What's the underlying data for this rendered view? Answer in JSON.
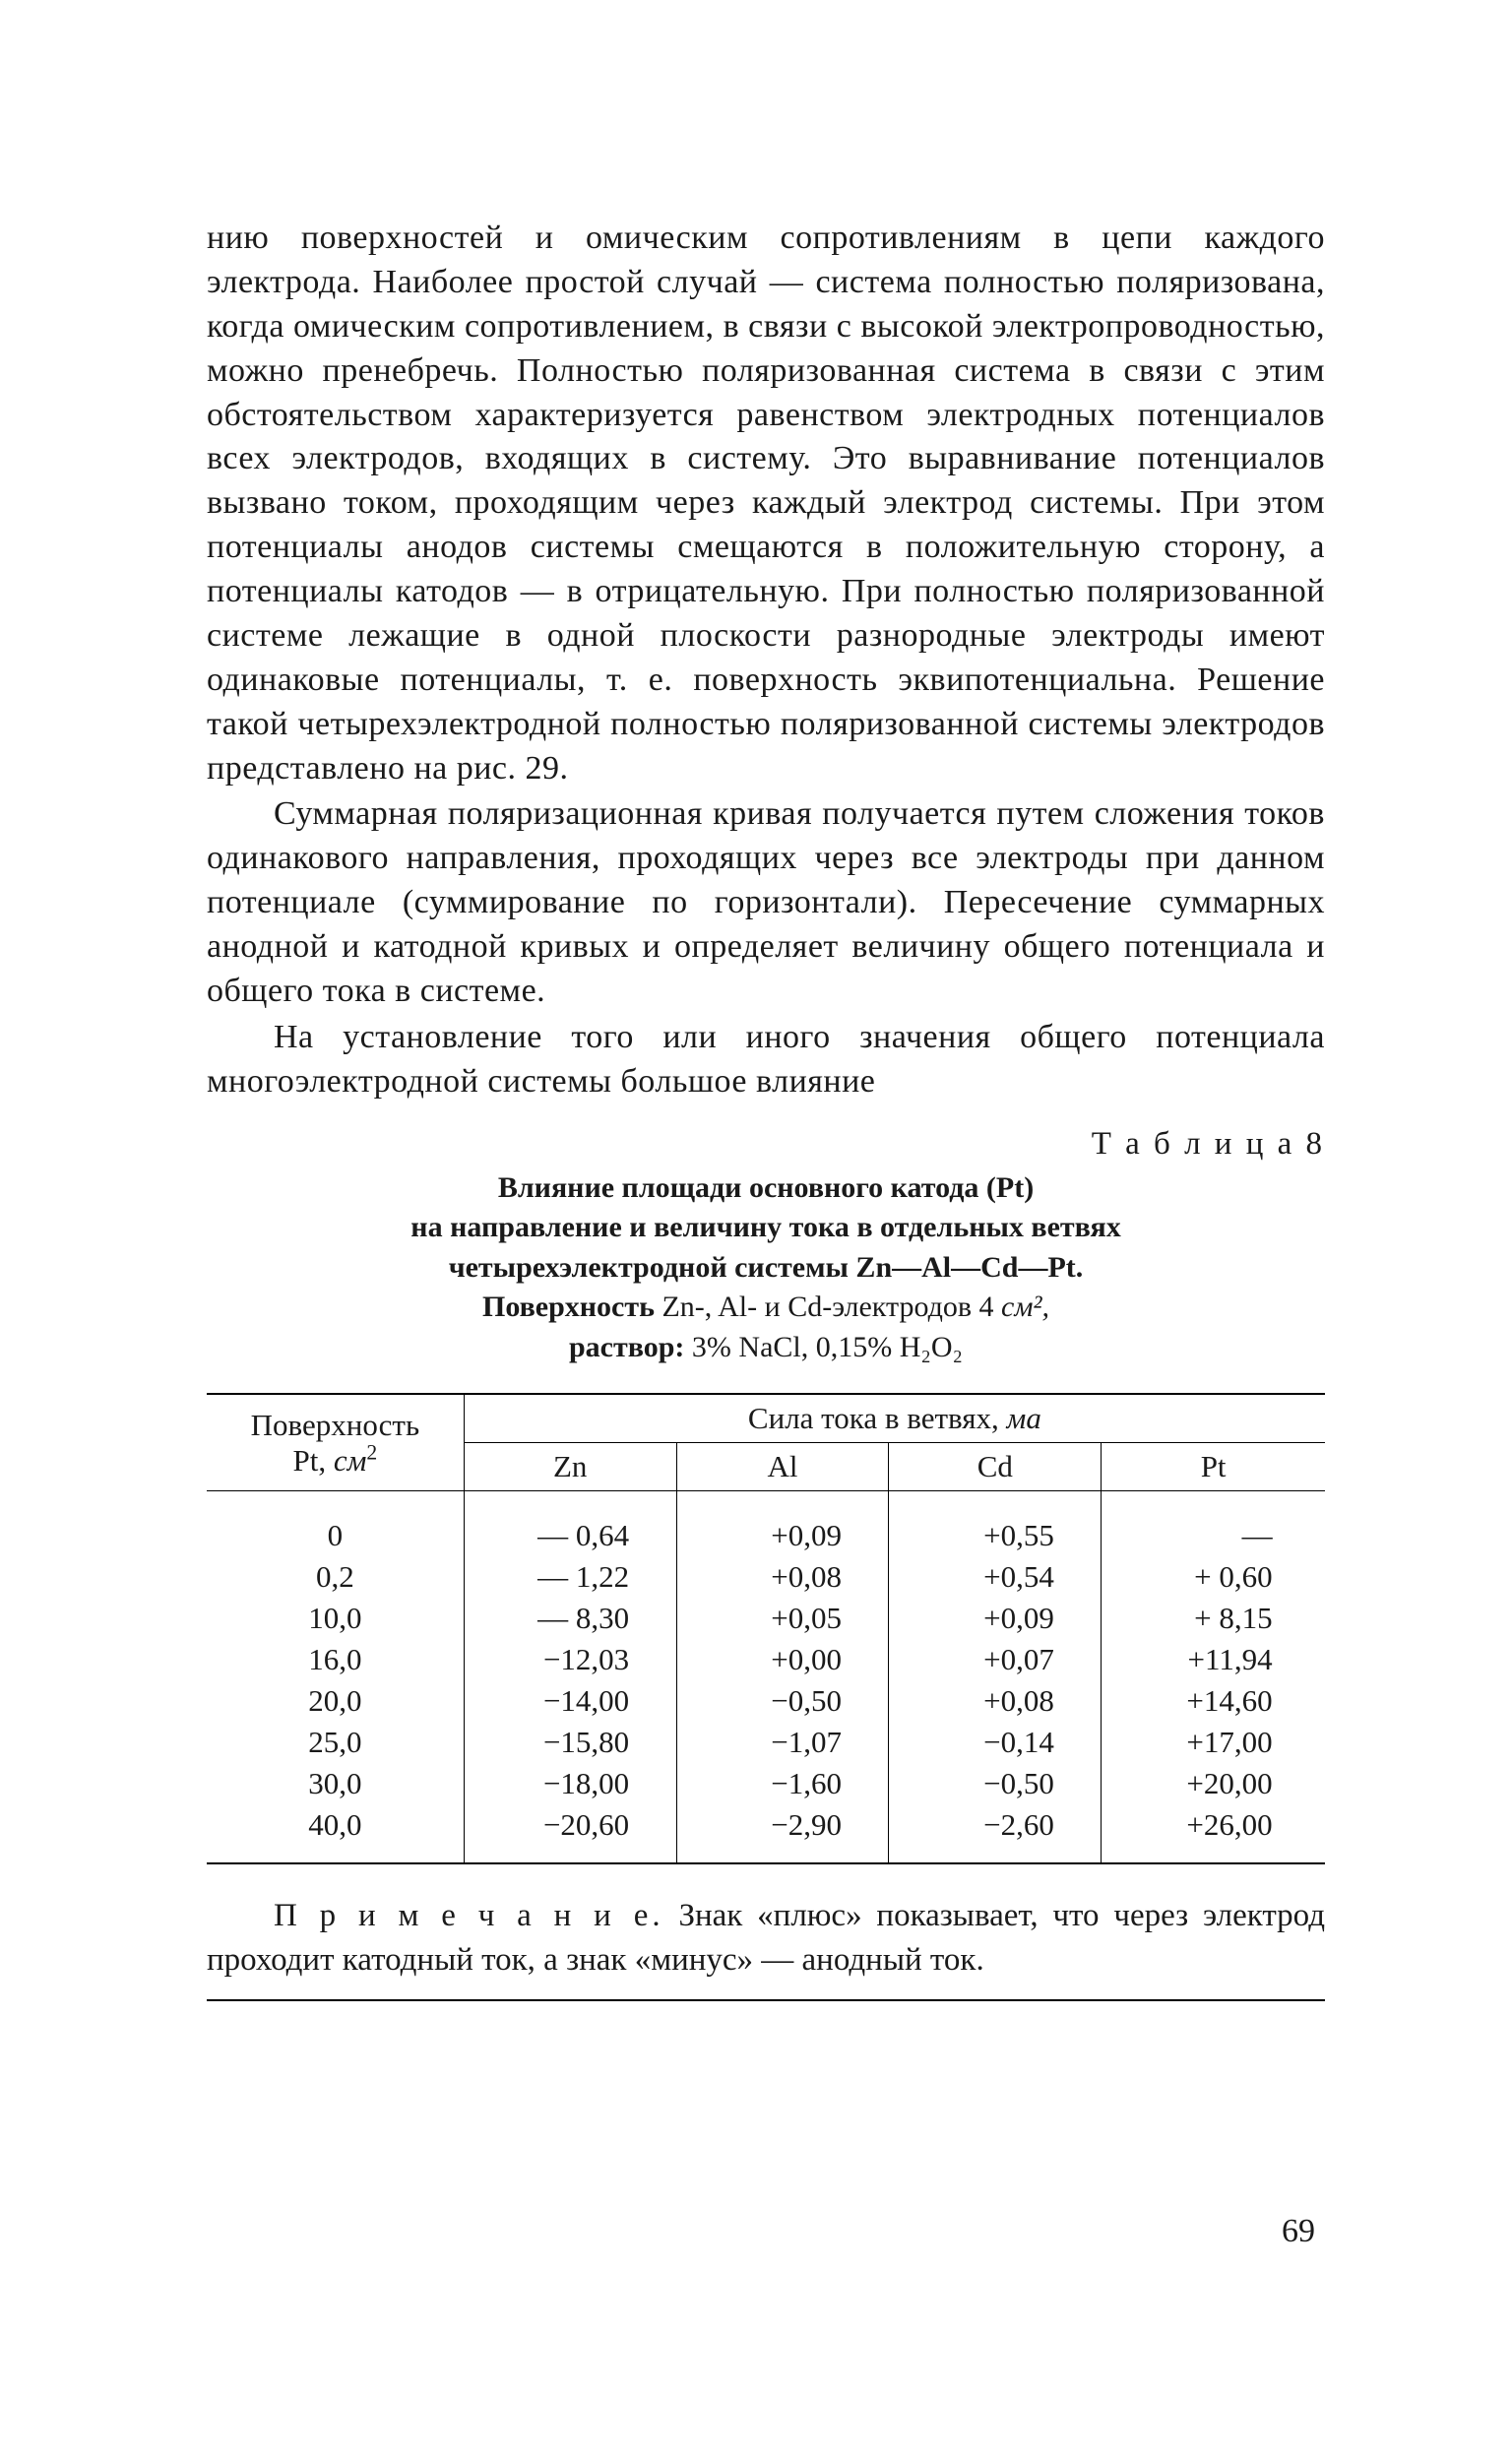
{
  "paragraphs": [
    "нию поверхностей и омическим сопротивлениям в цепи каждого электрода. Наиболее простой случай — система полностью поляризована, когда омическим сопротивлением, в связи с высокой электропроводностью, можно пренебречь. Полностью поляризованная система в связи с этим обстоятельством характеризуется равенством электродных потенциалов всех электродов, входящих в систему. Это выравнивание потенциалов вызвано током, проходящим через каждый электрод системы. При этом потенциалы анодов системы смещаются в положительную сторону, а потенциалы катодов — в отрицательную. При полностью поляризованной системе лежащие в одной плоскости разнородные электроды имеют одинаковые потенциалы, т. е. поверхность эквипотенциальна. Решение такой четырехэлектродной полностью поляризованной системы электродов представлено на рис. 29.",
    "Суммарная поляризационная кривая получается путем сложения токов одинакового направления, проходящих через все электроды при данном потенциале (суммирование по горизонтали). Пересечение суммарных анодной и катодной кривых и определяет величину общего потенциала и общего тока в системе.",
    "На установление того или иного значения общего потенциала многоэлектродной системы большое влияние"
  ],
  "table_label": "Т а б л и ц а  8",
  "caption_lines": {
    "l1": "Влияние площади основного катода (Pt)",
    "l2": "на направление и величину тока в отдельных ветвях",
    "l3": "четырехэлектродной системы Zn—Al—Cd—Pt.",
    "l4_prefix": "Поверхность ",
    "l4_mid": "Zn-, Al- и Cd-электродов 4 ",
    "l4_unit": "см²,",
    "l5_prefix": "раствор: ",
    "l5_rest": "3% NaCl, 0,15% H₂O₂"
  },
  "table": {
    "col_left_l1": "Поверхность",
    "col_left_l2": "Pt, см²",
    "group_header": "Сила тока в ветвях, ма",
    "subheads": [
      "Zn",
      "Al",
      "Cd",
      "Pt"
    ],
    "rows": [
      {
        "pt": "0",
        "zn": "— 0,64",
        "al": "+0,09",
        "cd": "+0,55",
        "ptc": "—"
      },
      {
        "pt": "0,2",
        "zn": "— 1,22",
        "al": "+0,08",
        "cd": "+0,54",
        "ptc": "+ 0,60"
      },
      {
        "pt": "10,0",
        "zn": "— 8,30",
        "al": "+0,05",
        "cd": "+0,09",
        "ptc": "+ 8,15"
      },
      {
        "pt": "16,0",
        "zn": "−12,03",
        "al": "+0,00",
        "cd": "+0,07",
        "ptc": "+11,94"
      },
      {
        "pt": "20,0",
        "zn": "−14,00",
        "al": "−0,50",
        "cd": "+0,08",
        "ptc": "+14,60"
      },
      {
        "pt": "25,0",
        "zn": "−15,80",
        "al": "−1,07",
        "cd": "−0,14",
        "ptc": "+17,00"
      },
      {
        "pt": "30,0",
        "zn": "−18,00",
        "al": "−1,60",
        "cd": "−0,50",
        "ptc": "+20,00"
      },
      {
        "pt": "40,0",
        "zn": "−20,60",
        "al": "−2,90",
        "cd": "−2,60",
        "ptc": "+26,00"
      }
    ]
  },
  "note_label": "П р и м е ч а н и е.",
  "note_text": " Знак «плюс» показывает, что через электрод проходит катодный ток, а знак «минус» — анодный ток.",
  "page_number": "69"
}
